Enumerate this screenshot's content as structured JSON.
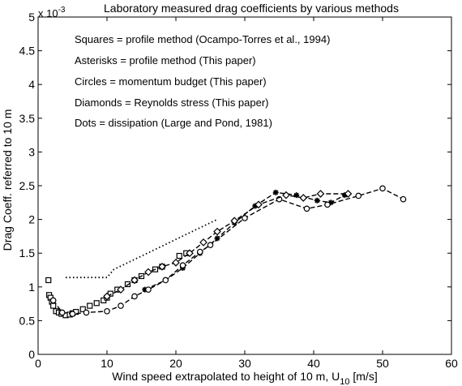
{
  "chart_data": {
    "type": "scatter",
    "title": "Laboratory measured drag coefficients by various methods",
    "exponent_label": "x 10",
    "exponent_power": "-3",
    "xlabel_main": "Wind speed extrapolated to height of 10 m, U",
    "xlabel_sub": "10",
    "xlabel_unit": " [m/s]",
    "ylabel": "Drag Coeff. referred to 10 m",
    "xlim": [
      0,
      60
    ],
    "ylim": [
      0,
      5
    ],
    "xticks": [
      "0",
      "10",
      "20",
      "30",
      "40",
      "50",
      "60"
    ],
    "yticks": [
      "0",
      "0.5",
      "1",
      "1.5",
      "2",
      "2.5",
      "3",
      "3.5",
      "4",
      "4.5",
      "5"
    ],
    "grid": false,
    "legend_text": [
      "Squares    = profile method  (Ocampo-Torres et al., 1994)",
      "Asterisks  = profile method  (This paper)",
      "Circles      = momentum budget (This paper)",
      "Diamonds = Reynolds stress (This paper)",
      "Dots        = dissipation       (Large and Pond, 1981)"
    ],
    "series": [
      {
        "name": "Squares",
        "marker": "square",
        "line": "none",
        "x": [
          1.5,
          1.6,
          1.8,
          2.0,
          2.2,
          2.6,
          3.0,
          3.4,
          4.0,
          4.6,
          5.0,
          5.5,
          6.5,
          7.5,
          8.5,
          9.5,
          10.0,
          10.5,
          11.5,
          13.0,
          14.0,
          15.0,
          17.0,
          18.0,
          20.5,
          21.5
        ],
        "y": [
          1.1,
          0.88,
          0.84,
          0.78,
          0.72,
          0.64,
          0.62,
          0.6,
          0.58,
          0.59,
          0.61,
          0.63,
          0.67,
          0.72,
          0.76,
          0.8,
          0.84,
          0.9,
          0.96,
          1.04,
          1.1,
          1.16,
          1.26,
          1.3,
          1.46,
          1.5
        ]
      },
      {
        "name": "Asterisks",
        "marker": "asterisk",
        "line": "dashed",
        "x": [
          15.5,
          18.5,
          21.0,
          23.5,
          26.0,
          28.5,
          31.5,
          34.5,
          37.5,
          40.5,
          42.5,
          44.5
        ],
        "y": [
          0.96,
          1.1,
          1.28,
          1.5,
          1.72,
          1.95,
          2.2,
          2.4,
          2.36,
          2.28,
          2.25,
          2.36
        ]
      },
      {
        "name": "Circles",
        "marker": "circle",
        "line": "dashed",
        "x": [
          2.2,
          3.5,
          5.0,
          7.0,
          10.0,
          12.0,
          14.0,
          16.0,
          18.5,
          21.0,
          23.5,
          25.0,
          30.0,
          35.0,
          39.0,
          42.0,
          46.5,
          50.0,
          53.0
        ],
        "y": [
          0.8,
          0.62,
          0.6,
          0.62,
          0.64,
          0.72,
          0.86,
          0.96,
          1.1,
          1.32,
          1.52,
          1.62,
          2.02,
          2.3,
          2.16,
          2.22,
          2.35,
          2.46,
          2.3
        ]
      },
      {
        "name": "Diamonds",
        "marker": "diamond",
        "line": "dashed",
        "x": [
          10.0,
          12.0,
          14.0,
          16.0,
          18.0,
          20.0,
          22.0,
          24.0,
          26.0,
          28.5,
          32.0,
          36.0,
          38.5,
          41.0,
          45.0
        ],
        "y": [
          0.86,
          0.96,
          1.1,
          1.22,
          1.3,
          1.36,
          1.5,
          1.66,
          1.82,
          1.98,
          2.22,
          2.36,
          2.32,
          2.38,
          2.38
        ]
      },
      {
        "name": "Dots",
        "marker": "none",
        "line": "dotted",
        "x": [
          4,
          10,
          11,
          26
        ],
        "y": [
          1.14,
          1.14,
          1.26,
          2.0
        ]
      }
    ]
  }
}
